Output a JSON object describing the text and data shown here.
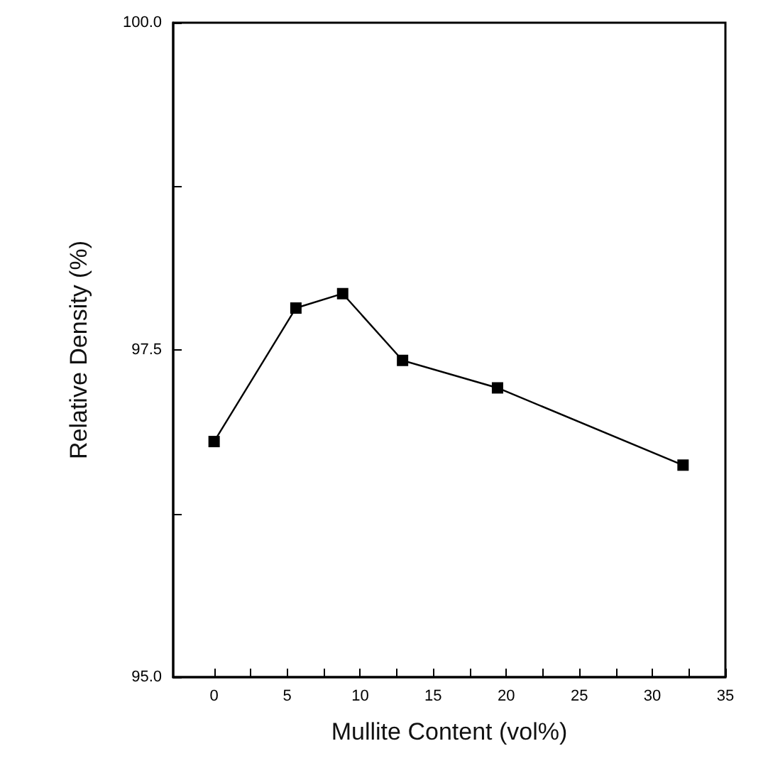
{
  "chart_data": {
    "type": "line",
    "xlabel": "Mullite Content (vol%)",
    "ylabel": "Relative Density (%)",
    "x": [
      0,
      5.6,
      8.8,
      12.9,
      19.4,
      32.1
    ],
    "values": [
      96.8,
      97.82,
      97.93,
      97.42,
      97.21,
      96.62
    ],
    "color": "#000000",
    "marker": "square",
    "line_style": "solid",
    "xlim": [
      -2.8,
      35
    ],
    "xticks": [
      0,
      {
        "value": 2.5,
        "label": null
      },
      5,
      {
        "value": 7.5,
        "label": null
      },
      10,
      {
        "value": 12.5,
        "label": null
      },
      15,
      {
        "value": 17.5,
        "label": null
      },
      20,
      {
        "value": 22.5,
        "label": null
      },
      25,
      {
        "value": 27.5,
        "label": null
      },
      30,
      {
        "value": 32.5,
        "label": null
      },
      35
    ],
    "ylim": [
      95,
      100
    ],
    "yticks": [
      {
        "value": 95,
        "label": "95.0"
      },
      {
        "value": 96.25,
        "label": null
      },
      {
        "value": 97.5,
        "label": "97.5"
      },
      {
        "value": 98.75,
        "label": null
      },
      {
        "value": 100,
        "label": "100.0"
      }
    ],
    "grid": false
  }
}
